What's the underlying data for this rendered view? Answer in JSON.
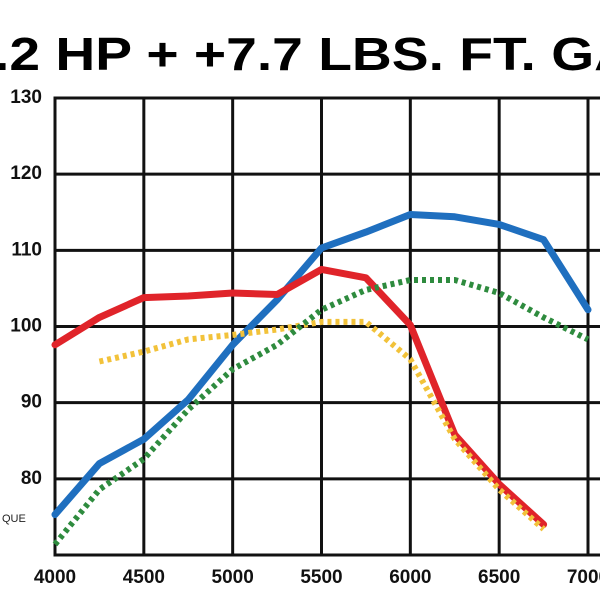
{
  "chart_data": {
    "type": "line",
    "title": ".2 HP + +7.7 LBS. FT. GA",
    "annotation": "QUE",
    "x": [
      4000,
      4250,
      4500,
      4750,
      5000,
      5250,
      5500,
      5750,
      6000,
      6250,
      6500,
      6750,
      7000
    ],
    "xlim": [
      4000,
      7000
    ],
    "xticks": [
      4000,
      4500,
      5000,
      5500,
      6000,
      6500,
      7000
    ],
    "ylim": [
      70,
      130
    ],
    "yticks": [
      80,
      90,
      100,
      110,
      120,
      130
    ],
    "grid": true,
    "series": [
      {
        "color": "#1f6fbf",
        "style": "solid",
        "values": [
          75.3,
          82,
          85.2,
          90.4,
          97.6,
          103.5,
          110.3,
          112.4,
          114.7,
          114.4,
          113.4,
          111.4,
          102.2
        ]
      },
      {
        "color": "#e0242a",
        "style": "solid",
        "values": [
          97.6,
          101.2,
          103.8,
          104,
          104.4,
          104.2,
          107.5,
          106.4,
          100.2,
          85.8,
          79.3,
          74,
          null
        ]
      },
      {
        "color": "#f2c23a",
        "style": "dotted",
        "values": [
          null,
          95.4,
          96.7,
          98.3,
          98.9,
          99.6,
          100.6,
          100.6,
          95.7,
          85.2,
          78.6,
          73.4,
          null
        ]
      },
      {
        "color": "#2e8b3e",
        "style": "dotted",
        "values": [
          71.4,
          78.6,
          82.6,
          89.1,
          94.4,
          97.6,
          102.2,
          104.8,
          106.1,
          106.1,
          104.4,
          101.2,
          98.3
        ]
      }
    ]
  }
}
